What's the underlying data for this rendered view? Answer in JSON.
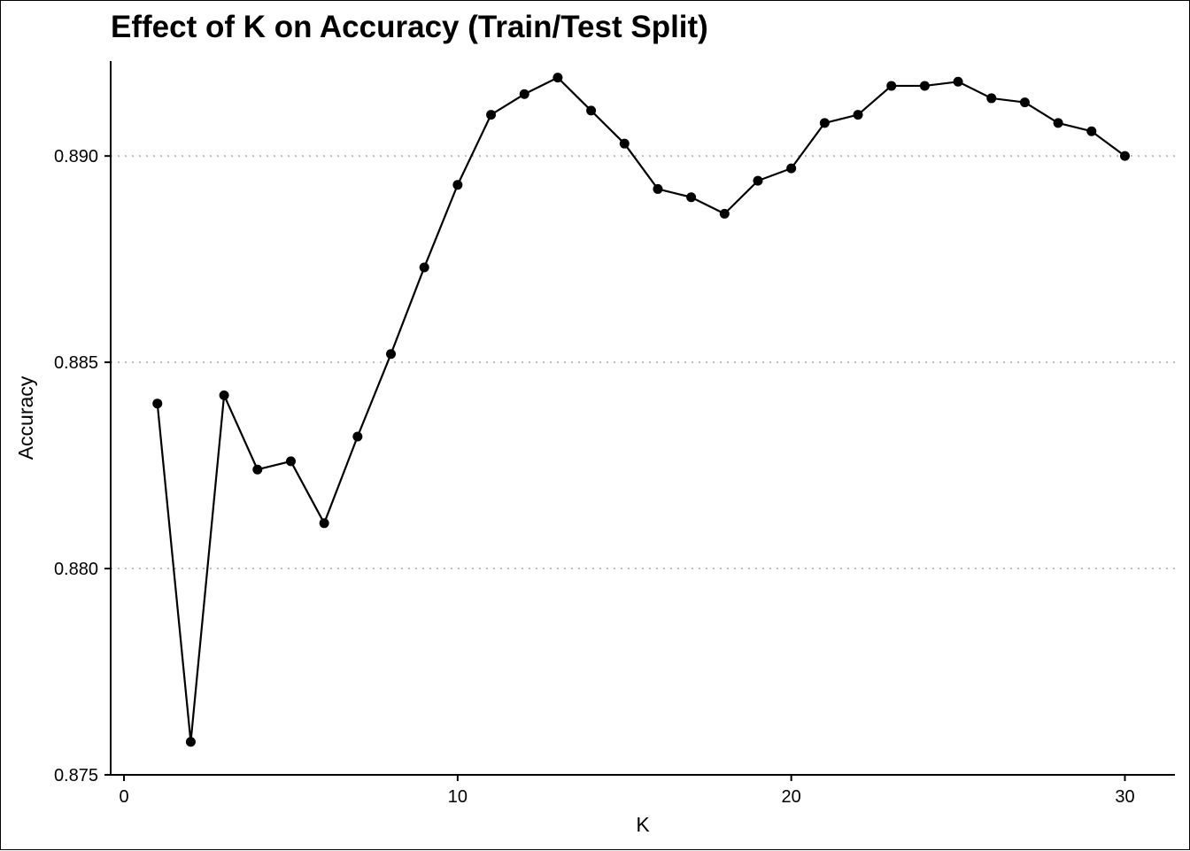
{
  "chart_data": {
    "type": "line",
    "title": "Effect of K on Accuracy (Train/Test Split)",
    "xlabel": "K",
    "ylabel": "Accuracy",
    "xlim": [
      -0.4,
      31.5
    ],
    "ylim": [
      0.875,
      0.8923
    ],
    "x_ticks": [
      0,
      10,
      20,
      30
    ],
    "x_tick_labels": [
      "0",
      "10",
      "20",
      "30"
    ],
    "y_ticks": [
      0.875,
      0.88,
      0.885,
      0.89
    ],
    "y_tick_labels": [
      "0.875",
      "0.880",
      "0.885",
      "0.890"
    ],
    "grid": "horizontal dotted",
    "legend": "none",
    "colors": {
      "line": "#000000",
      "grid": "#bbbbbb"
    },
    "series": [
      {
        "x": [
          1,
          2,
          3,
          4,
          5,
          6,
          7,
          8,
          9,
          10,
          11,
          12,
          13,
          14,
          15,
          16,
          17,
          18,
          19,
          20,
          21,
          22,
          23,
          24,
          25,
          26,
          27,
          28,
          29,
          30
        ],
        "y": [
          0.884,
          0.8758,
          0.8842,
          0.8824,
          0.8826,
          0.8811,
          0.8832,
          0.8852,
          0.8873,
          0.8893,
          0.891,
          0.8915,
          0.8919,
          0.8911,
          0.8903,
          0.8892,
          0.889,
          0.8886,
          0.8894,
          0.8897,
          0.8908,
          0.891,
          0.8917,
          0.8917,
          0.8918,
          0.8914,
          0.8913,
          0.8908,
          0.8906,
          0.89
        ]
      }
    ]
  }
}
